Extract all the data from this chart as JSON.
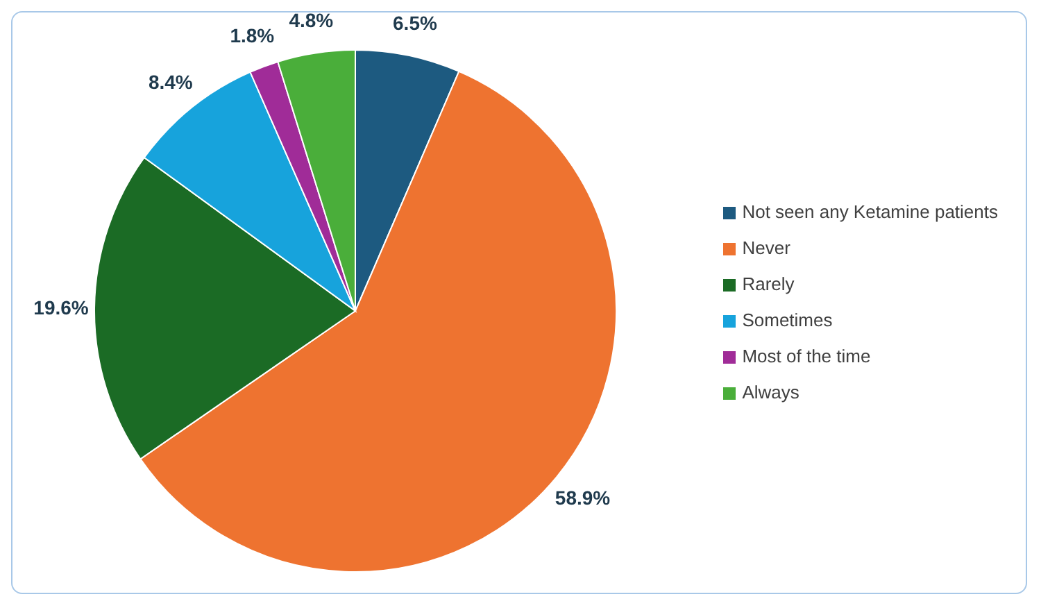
{
  "chart_data": {
    "type": "pie",
    "categories": [
      "Not seen any Ketamine patients",
      "Never",
      "Rarely",
      "Sometimes",
      "Most of the time",
      "Always"
    ],
    "values": [
      6.5,
      58.9,
      19.6,
      8.4,
      1.8,
      4.8
    ],
    "value_labels": [
      "6.5%",
      "58.9%",
      "19.6%",
      "8.4%",
      "1.8%",
      "4.8%"
    ],
    "colors": [
      "#1d5a80",
      "#ee7330",
      "#1b6b25",
      "#17a3dc",
      "#a02c98",
      "#4aae3a"
    ],
    "legend": "right"
  }
}
